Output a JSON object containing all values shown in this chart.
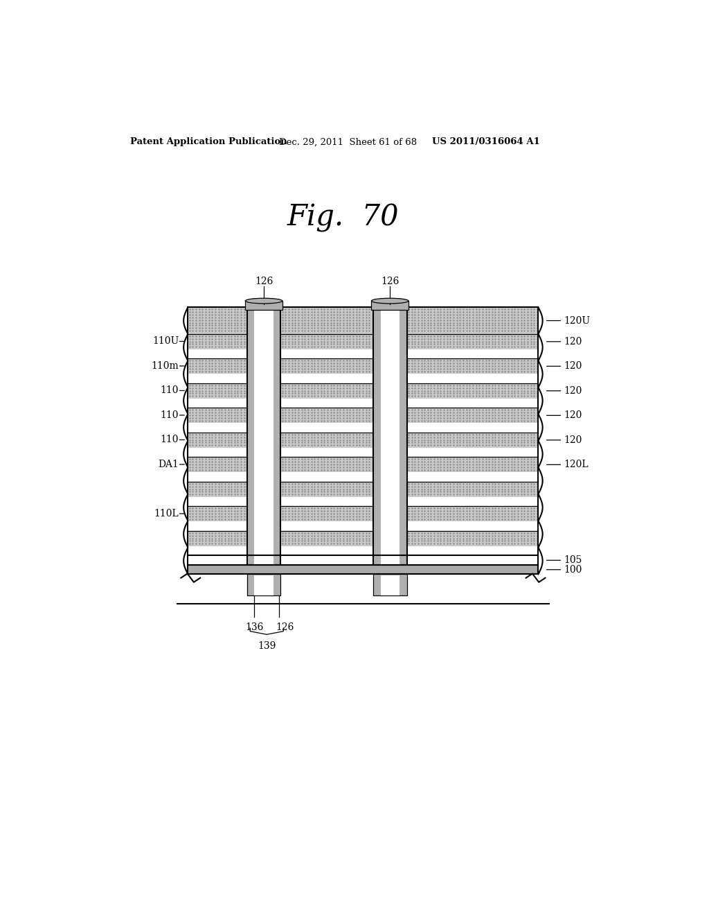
{
  "bg_color": "#ffffff",
  "header_left": "Patent Application Publication",
  "header_mid": "Dec. 29, 2011  Sheet 61 of 68",
  "header_right": "US 2011/0316064 A1",
  "fig_title": "Fig.  70",
  "colors": {
    "black": "#000000",
    "white": "#ffffff",
    "stipple_gray": "#c8c8c8",
    "pillar_gray": "#b0b0b0",
    "cap_gray": "#aaaaaa"
  }
}
